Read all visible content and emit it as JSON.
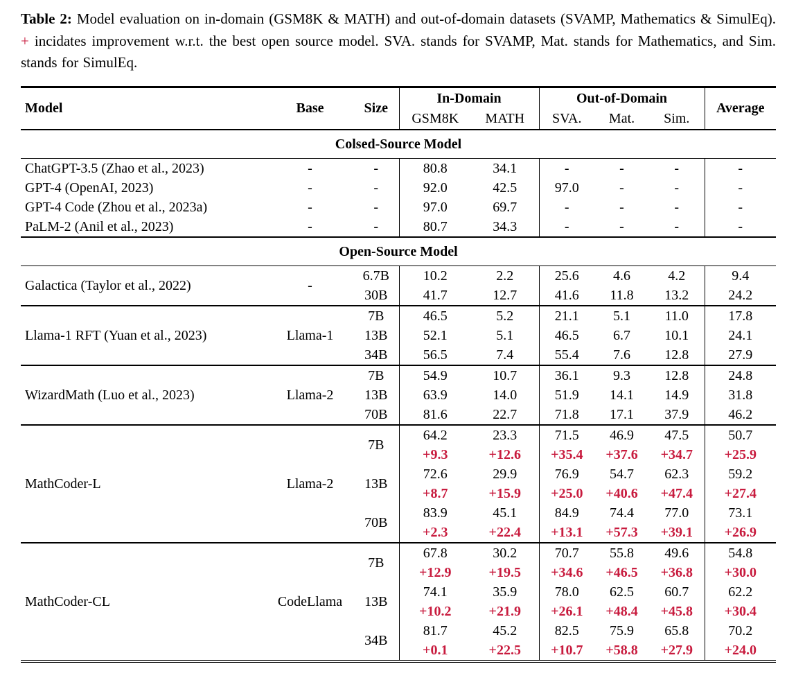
{
  "colors": {
    "accent_red": "#c81b3e",
    "text": "#000000",
    "background": "#ffffff"
  },
  "caption": {
    "label": "Table 2:",
    "before_plus": "Model evaluation on in-domain (GSM8K & MATH) and out-of-domain datasets (SVAMP, Mathematics & SimulEq).",
    "plus": "+",
    "after_plus": "incidates improvement w.r.t. the best open source model. SVA. stands for SVAMP, Mat. stands for Mathematics, and Sim. stands for SimulEq."
  },
  "table": {
    "columns": {
      "model": "Model",
      "base": "Base",
      "size": "Size",
      "in_domain": "In-Domain",
      "out_of_domain": "Out-of-Domain",
      "gsm8k": "GSM8K",
      "math": "MATH",
      "sva": "SVA.",
      "mat": "Mat.",
      "sim": "Sim.",
      "average": "Average"
    },
    "sections": [
      {
        "title": "Colsed-Source Model",
        "rule_between_groups": false,
        "groups": [
          {
            "model": "ChatGPT-3.5 (Zhao et al., 2023)",
            "base": "-",
            "rows": [
              {
                "size": "-",
                "values": [
                  "80.8",
                  "34.1",
                  "-",
                  "-",
                  "-",
                  "-"
                ]
              }
            ]
          },
          {
            "model": "GPT-4 (OpenAI, 2023)",
            "base": "-",
            "rows": [
              {
                "size": "-",
                "values": [
                  "92.0",
                  "42.5",
                  "97.0",
                  "-",
                  "-",
                  "-"
                ]
              }
            ]
          },
          {
            "model": "GPT-4 Code (Zhou et al., 2023a)",
            "base": "-",
            "rows": [
              {
                "size": "-",
                "values": [
                  "97.0",
                  "69.7",
                  "-",
                  "-",
                  "-",
                  "-"
                ]
              }
            ]
          },
          {
            "model": "PaLM-2 (Anil et al., 2023)",
            "base": "-",
            "rows": [
              {
                "size": "-",
                "values": [
                  "80.7",
                  "34.3",
                  "-",
                  "-",
                  "-",
                  "-"
                ]
              }
            ]
          }
        ]
      },
      {
        "title": "Open-Source Model",
        "rule_between_groups": true,
        "groups": [
          {
            "model": "Galactica (Taylor et al., 2022)",
            "base": "-",
            "rows": [
              {
                "size": "6.7B",
                "values": [
                  "10.2",
                  "2.2",
                  "25.6",
                  "4.6",
                  "4.2",
                  "9.4"
                ]
              },
              {
                "size": "30B",
                "values": [
                  "41.7",
                  "12.7",
                  "41.6",
                  "11.8",
                  "13.2",
                  "24.2"
                ]
              }
            ]
          },
          {
            "model": "Llama-1 RFT (Yuan et al., 2023)",
            "base": "Llama-1",
            "rows": [
              {
                "size": "7B",
                "values": [
                  "46.5",
                  "5.2",
                  "21.1",
                  "5.1",
                  "11.0",
                  "17.8"
                ]
              },
              {
                "size": "13B",
                "values": [
                  "52.1",
                  "5.1",
                  "46.5",
                  "6.7",
                  "10.1",
                  "24.1"
                ]
              },
              {
                "size": "34B",
                "values": [
                  "56.5",
                  "7.4",
                  "55.4",
                  "7.6",
                  "12.8",
                  "27.9"
                ]
              }
            ]
          },
          {
            "model": "WizardMath (Luo et al., 2023)",
            "base": "Llama-2",
            "rows": [
              {
                "size": "7B",
                "values": [
                  "54.9",
                  "10.7",
                  "36.1",
                  "9.3",
                  "12.8",
                  "24.8"
                ]
              },
              {
                "size": "13B",
                "values": [
                  "63.9",
                  "14.0",
                  "51.9",
                  "14.1",
                  "14.9",
                  "31.8"
                ]
              },
              {
                "size": "70B",
                "values": [
                  "81.6",
                  "22.7",
                  "71.8",
                  "17.1",
                  "37.9",
                  "46.2"
                ]
              }
            ]
          },
          {
            "model": "MathCoder-L",
            "base": "Llama-2",
            "rows": [
              {
                "size": "7B",
                "values": [
                  "64.2",
                  "23.3",
                  "71.5",
                  "46.9",
                  "47.5",
                  "50.7"
                ],
                "delta": [
                  "+9.3",
                  "+12.6",
                  "+35.4",
                  "+37.6",
                  "+34.7",
                  "+25.9"
                ]
              },
              {
                "size": "13B",
                "values": [
                  "72.6",
                  "29.9",
                  "76.9",
                  "54.7",
                  "62.3",
                  "59.2"
                ],
                "delta": [
                  "+8.7",
                  "+15.9",
                  "+25.0",
                  "+40.6",
                  "+47.4",
                  "+27.4"
                ]
              },
              {
                "size": "70B",
                "values": [
                  "83.9",
                  "45.1",
                  "84.9",
                  "74.4",
                  "77.0",
                  "73.1"
                ],
                "delta": [
                  "+2.3",
                  "+22.4",
                  "+13.1",
                  "+57.3",
                  "+39.1",
                  "+26.9"
                ]
              }
            ]
          },
          {
            "model": "MathCoder-CL",
            "base": "CodeLlama",
            "rows": [
              {
                "size": "7B",
                "values": [
                  "67.8",
                  "30.2",
                  "70.7",
                  "55.8",
                  "49.6",
                  "54.8"
                ],
                "delta": [
                  "+12.9",
                  "+19.5",
                  "+34.6",
                  "+46.5",
                  "+36.8",
                  "+30.0"
                ]
              },
              {
                "size": "13B",
                "values": [
                  "74.1",
                  "35.9",
                  "78.0",
                  "62.5",
                  "60.7",
                  "62.2"
                ],
                "delta": [
                  "+10.2",
                  "+21.9",
                  "+26.1",
                  "+48.4",
                  "+45.8",
                  "+30.4"
                ]
              },
              {
                "size": "34B",
                "values": [
                  "81.7",
                  "45.2",
                  "82.5",
                  "75.9",
                  "65.8",
                  "70.2"
                ],
                "delta": [
                  "+0.1",
                  "+22.5",
                  "+10.7",
                  "+58.8",
                  "+27.9",
                  "+24.0"
                ]
              }
            ]
          }
        ]
      }
    ]
  }
}
